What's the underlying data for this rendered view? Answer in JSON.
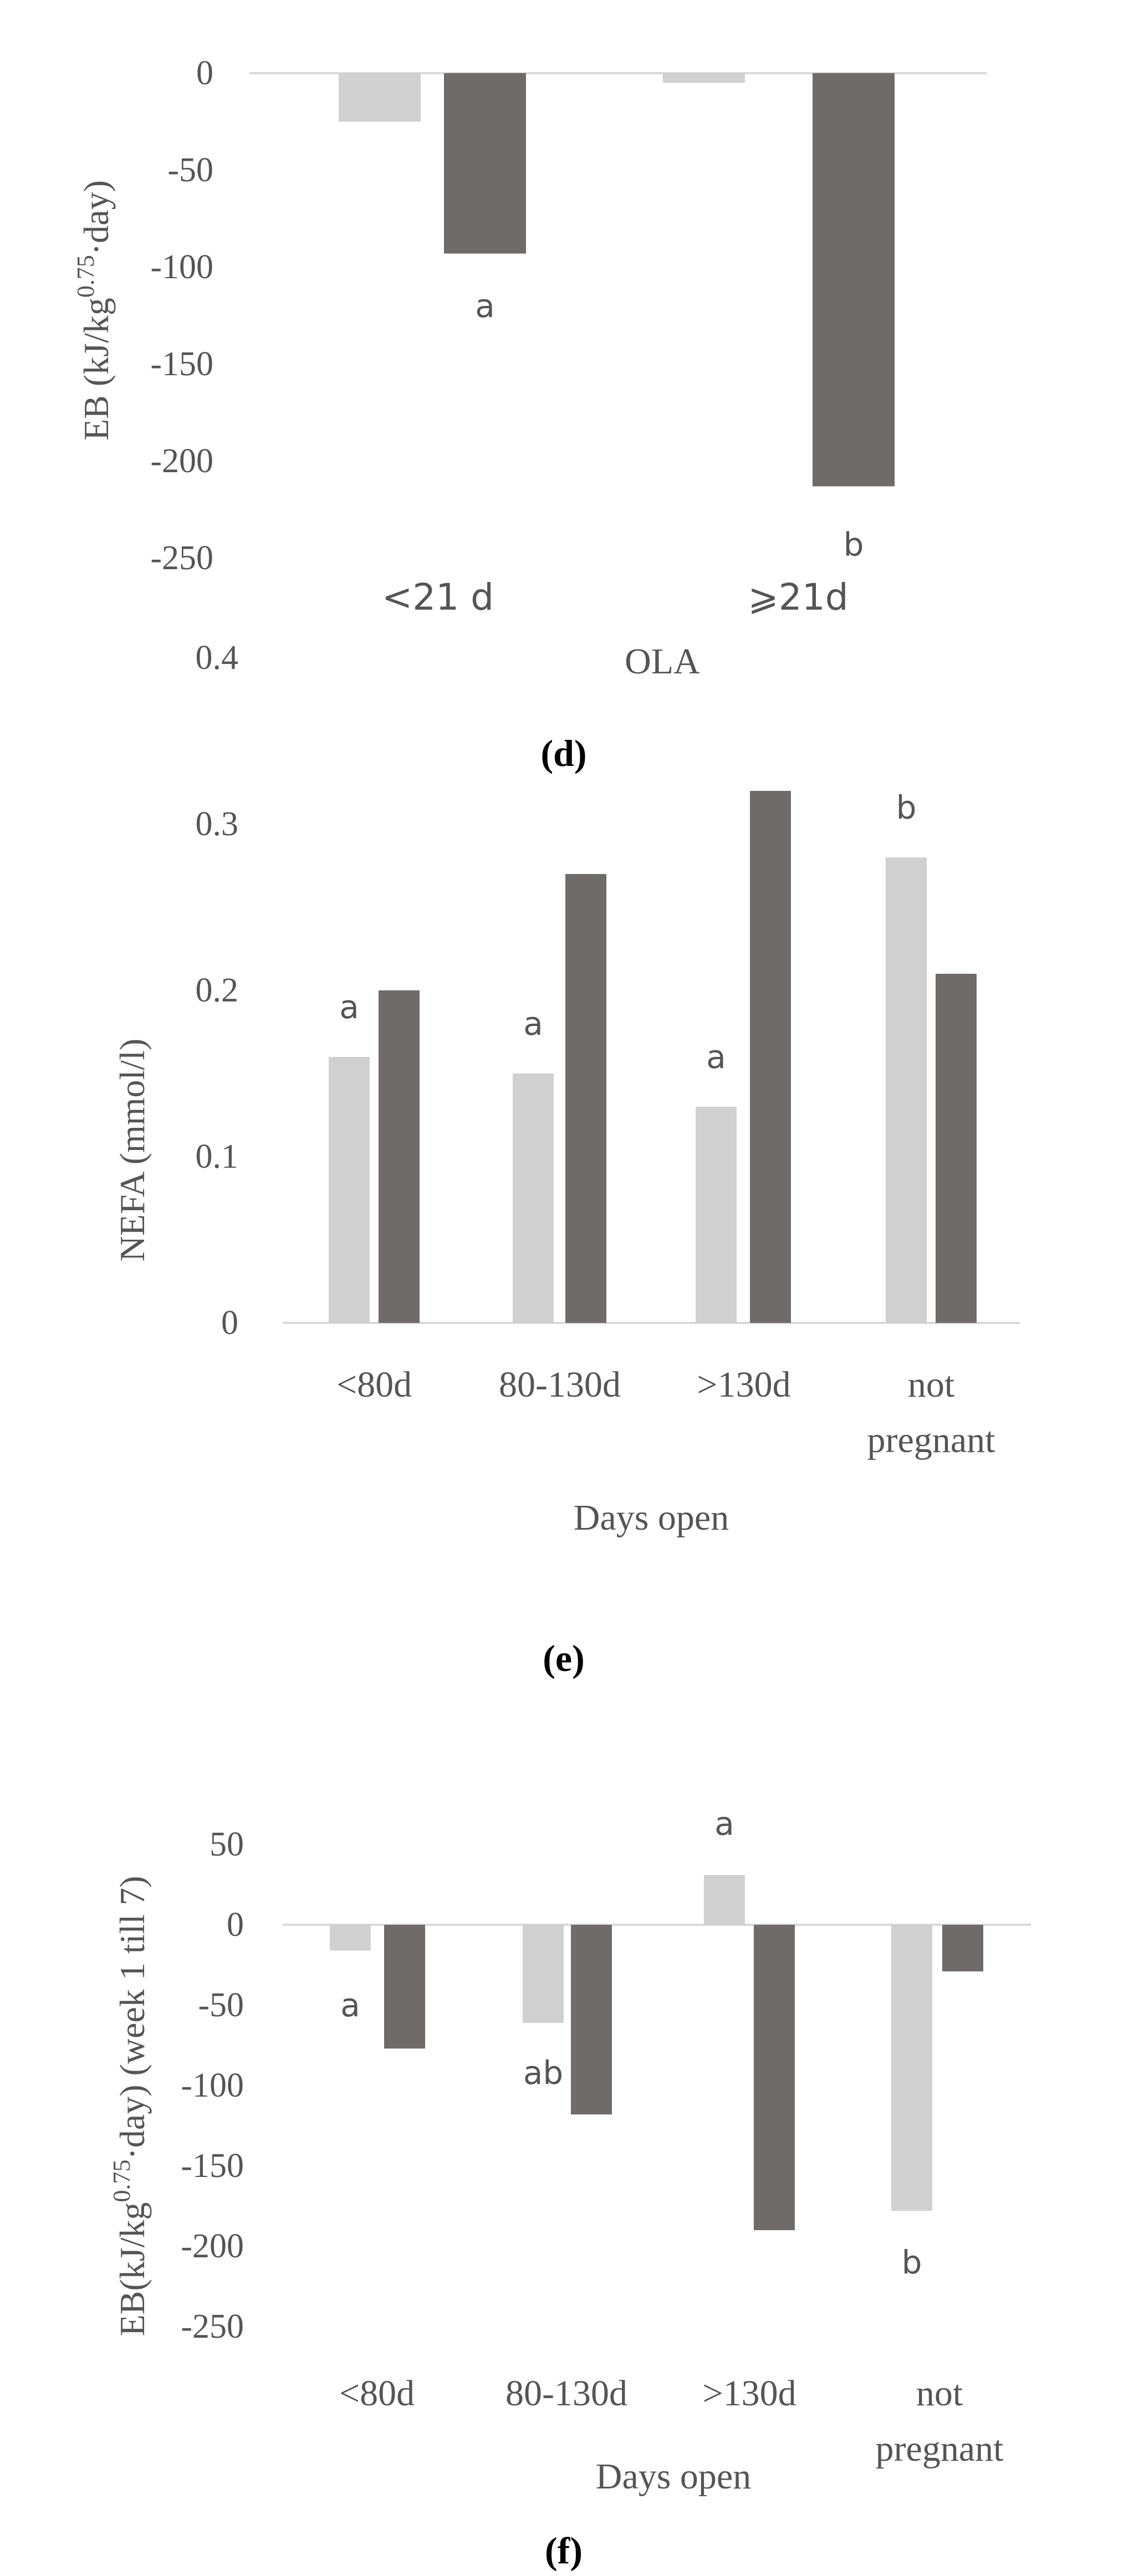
{
  "colors": {
    "light": "#d0d0d0",
    "dark": "#706b6b",
    "axis": "#d9d9d9",
    "text": "#555555"
  },
  "chart_data": [
    {
      "type": "bar",
      "panel": "(d)",
      "xlabel": "OLA",
      "ylabel": "EB (kJ/kg0.75·day)",
      "ylabel_main": "EB (kJ/kg",
      "ylabel_sup": "0.75",
      "ylabel_tail": "·day)",
      "ylim": [
        -250,
        0
      ],
      "yticks": [
        "0",
        "-50",
        "-100",
        "-150",
        "-200",
        "-250"
      ],
      "categories": [
        "<21 d",
        "⩾21d"
      ],
      "series": [
        {
          "name": "light",
          "values": [
            -25,
            -5
          ]
        },
        {
          "name": "dark",
          "values": [
            -93,
            -213
          ]
        }
      ],
      "annotations": [
        {
          "text": "a",
          "category": 0,
          "near": "dark",
          "value": -120
        },
        {
          "text": "b",
          "category": 1,
          "near": "dark",
          "value": -243
        }
      ]
    },
    {
      "type": "bar",
      "panel": "(e)",
      "xlabel": "Days open",
      "ylabel": "NEFA (mmol/l)",
      "ylim": [
        0,
        0.4
      ],
      "yticks": [
        "0.4",
        "0.3",
        "0.2",
        "0.1",
        "0"
      ],
      "categories": [
        "<80d",
        "80-130d",
        ">130d",
        "not pregnant"
      ],
      "category_lines": [
        [
          "<80d"
        ],
        [
          "80-130d"
        ],
        [
          ">130d"
        ],
        [
          "not",
          "pregnant"
        ]
      ],
      "series": [
        {
          "name": "light",
          "values": [
            0.16,
            0.15,
            0.13,
            0.28
          ]
        },
        {
          "name": "dark",
          "values": [
            0.2,
            0.27,
            0.32,
            0.21
          ]
        }
      ],
      "annotations": [
        {
          "text": "a",
          "category": 0,
          "near": "light",
          "value": 0.19
        },
        {
          "text": "a",
          "category": 1,
          "near": "light",
          "value": 0.18
        },
        {
          "text": "a",
          "category": 2,
          "near": "light",
          "value": 0.16
        },
        {
          "text": "b",
          "category": 3,
          "near": "light",
          "value": 0.31
        }
      ]
    },
    {
      "type": "bar",
      "panel": "(f)",
      "xlabel": "Days open",
      "ylabel": "EB(kJ/kg0.75·day) (week 1 till 7)",
      "ylabel_main": "EB(kJ/kg",
      "ylabel_sup": "0.75",
      "ylabel_tail": "·day) (week 1 till 7)",
      "ylim": [
        -250,
        50
      ],
      "yticks": [
        "50",
        "0",
        "-50",
        "-100",
        "-150",
        "-200",
        "-250"
      ],
      "categories": [
        "<80d",
        "80-130d",
        ">130d",
        "not pregnant"
      ],
      "category_lines": [
        [
          "<80d"
        ],
        [
          "80-130d"
        ],
        [
          ">130d"
        ],
        [
          "not",
          "pregnant"
        ]
      ],
      "series": [
        {
          "name": "light",
          "values": [
            -16,
            -61,
            31,
            -178
          ]
        },
        {
          "name": "dark",
          "values": [
            -77,
            -118,
            -190,
            -29
          ]
        }
      ],
      "annotations": [
        {
          "text": "a",
          "category": 0,
          "near": "light",
          "value": -50
        },
        {
          "text": "ab",
          "category": 1,
          "near": "light",
          "value": -92
        },
        {
          "text": "a",
          "category": 2,
          "near": "light",
          "value": 63
        },
        {
          "text": "b",
          "category": 3,
          "near": "light",
          "value": -210
        }
      ]
    }
  ]
}
